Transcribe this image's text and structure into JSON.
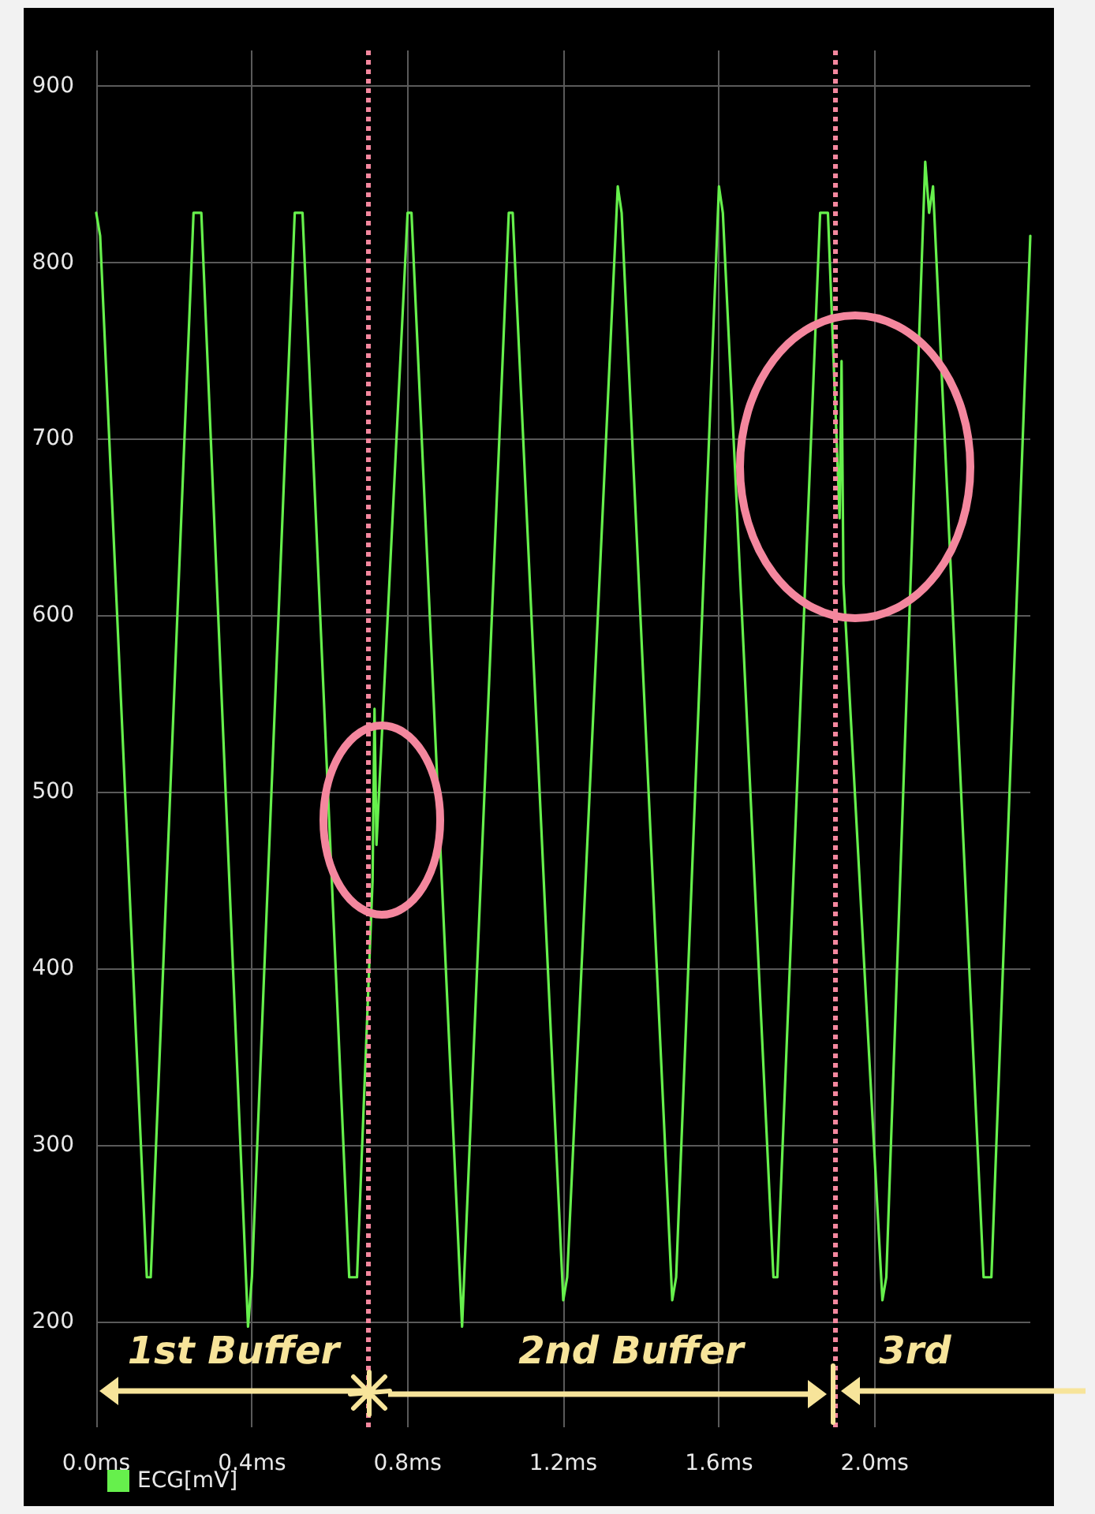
{
  "chart_data": {
    "type": "line",
    "series": [
      {
        "name": "ECG[mV]",
        "color": "#66f04c",
        "x": [
          0,
          0.01,
          0.13,
          0.14,
          0.25,
          0.27,
          0.39,
          0.4,
          0.51,
          0.53,
          0.65,
          0.67,
          0.71,
          0.715,
          0.72,
          0.8,
          0.81,
          0.94,
          1.06,
          1.07,
          1.2,
          1.21,
          1.34,
          1.35,
          1.48,
          1.49,
          1.6,
          1.61,
          1.74,
          1.75,
          1.86,
          1.88,
          1.91,
          1.915,
          1.92,
          2.02,
          2.03,
          2.13,
          2.14,
          2.15,
          2.28,
          2.3,
          2.4
        ],
        "values": [
          828,
          815,
          225,
          225,
          828,
          828,
          197,
          225,
          828,
          828,
          225,
          225,
          450,
          547,
          470,
          828,
          828,
          197,
          828,
          828,
          212,
          225,
          843,
          828,
          212,
          225,
          843,
          828,
          225,
          225,
          828,
          828,
          655,
          744,
          618,
          212,
          225,
          857,
          828,
          843,
          225,
          225,
          815
        ]
      }
    ],
    "xlim": [
      0,
      2.4
    ],
    "xticks": [
      {
        "value": 0,
        "label": "0.0ms"
      },
      {
        "value": 0.4,
        "label": "0.4ms"
      },
      {
        "value": 0.8,
        "label": "0.8ms"
      },
      {
        "value": 1.2,
        "label": "1.2ms"
      },
      {
        "value": 1.6,
        "label": "1.6ms"
      },
      {
        "value": 2.0,
        "label": "2.0ms"
      }
    ],
    "ylim": [
      140,
      920
    ],
    "yticks": [
      200,
      300,
      400,
      500,
      600,
      700,
      800,
      900
    ],
    "grid": true,
    "legend": "bottom left",
    "marker": "none",
    "line_style": "solid",
    "ref_lines": [
      {
        "axis": "x",
        "value": 0.7,
        "color": "#f4879e",
        "line_style": "dotted"
      },
      {
        "axis": "x",
        "value": 1.9,
        "color": "#f4879e",
        "line_style": "dotted"
      }
    ],
    "annotations": [
      "1st Buffer",
      "2nd Buffer",
      "3rd"
    ]
  }
}
